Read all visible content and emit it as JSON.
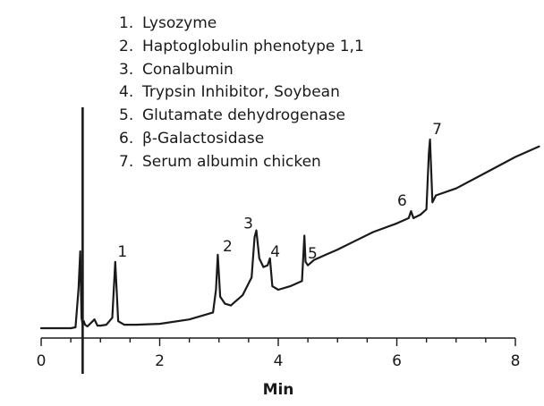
{
  "chart_data": {
    "type": "line",
    "xlabel": "Min",
    "ylabel": "",
    "xlim": [
      0,
      8
    ],
    "x_ticks": [
      "0",
      "2",
      "4",
      "6",
      "8"
    ],
    "grid": false,
    "legend": [
      {
        "number": "1.",
        "name": "Lysozyme"
      },
      {
        "number": "2.",
        "name": "Haptoglobulin phenotype 1,1"
      },
      {
        "number": "3.",
        "name": "Conalbumin"
      },
      {
        "number": "4.",
        "name": "Trypsin Inhibitor, Soybean"
      },
      {
        "number": "5.",
        "name": "Glutamate dehydrogenase"
      },
      {
        "number": "6.",
        "name": "β-Galactosidase"
      },
      {
        "number": "7.",
        "name": "Serum albumin chicken"
      }
    ],
    "peaks": [
      {
        "label": "1",
        "time": 1.25
      },
      {
        "label": "2",
        "time": 2.98
      },
      {
        "label": "3",
        "time": 3.63
      },
      {
        "label": "4",
        "time": 3.86
      },
      {
        "label": "5",
        "time": 4.46
      },
      {
        "label": "6",
        "time": 6.24
      },
      {
        "label": "7",
        "time": 6.56
      }
    ],
    "trace": {
      "x": [
        0,
        0.5,
        0.58,
        0.63,
        0.66,
        0.68,
        0.7,
        0.72,
        0.74,
        0.78,
        0.9,
        0.95,
        1.0,
        1.1,
        1.2,
        1.25,
        1.3,
        1.4,
        1.6,
        2.0,
        2.5,
        2.9,
        2.95,
        2.98,
        3.02,
        3.1,
        3.2,
        3.4,
        3.55,
        3.6,
        3.63,
        3.68,
        3.75,
        3.82,
        3.86,
        3.9,
        4.0,
        4.2,
        4.4,
        4.44,
        4.46,
        4.5,
        4.6,
        4.8,
        5.0,
        5.3,
        5.6,
        6.0,
        6.2,
        6.24,
        6.28,
        6.4,
        6.5,
        6.54,
        6.56,
        6.6,
        6.66,
        7.0,
        7.5,
        8.0,
        8.4
      ],
      "y": [
        0,
        0,
        0.5,
        22,
        44,
        6,
        2,
        4,
        2,
        1,
        5,
        1.5,
        1.5,
        2,
        6,
        38,
        4,
        2,
        2,
        2.5,
        5,
        9,
        22,
        42,
        18,
        14,
        13,
        19,
        29,
        52,
        56,
        40,
        35,
        36,
        40,
        24,
        22,
        24,
        27,
        53,
        38,
        36,
        39,
        42,
        45,
        50,
        55,
        60,
        63,
        67,
        63,
        65,
        68,
        100,
        108,
        72,
        76,
        80,
        89,
        98,
        104
      ]
    }
  }
}
